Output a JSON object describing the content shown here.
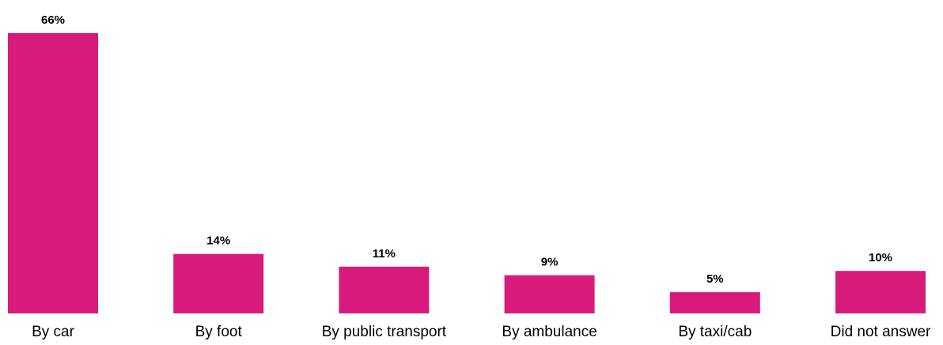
{
  "chart_data": {
    "type": "bar",
    "categories": [
      "By car",
      "By foot",
      "By public transport",
      "By ambulance",
      "By taxi/cab",
      "Did not answer"
    ],
    "values": [
      66,
      14,
      11,
      9,
      5,
      10
    ],
    "data_labels": [
      "66%",
      "14%",
      "11%",
      "9%",
      "5%",
      "10%"
    ],
    "unit": "%",
    "ylim": [
      0,
      66
    ],
    "grid": false,
    "legend": "none",
    "bar_color": "#D81B7B"
  }
}
